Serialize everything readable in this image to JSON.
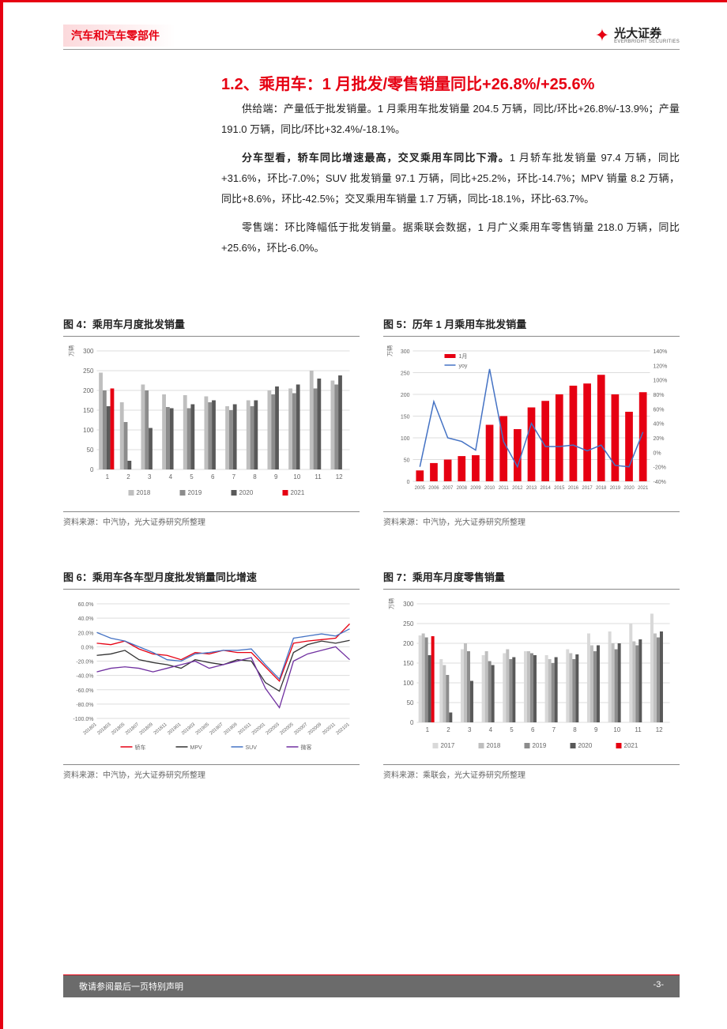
{
  "header": {
    "category": "汽车和汽车零部件",
    "logo_cn": "光大证券",
    "logo_en": "EVERBRIGHT SECURITIES"
  },
  "section": {
    "title": "1.2、乘用车：1 月批发/零售销量同比+26.8%/+25.6%",
    "p1": "供给端：产量低于批发销量。1 月乘用车批发销量 204.5 万辆，同比/环比+26.8%/-13.9%；产量 191.0 万辆，同比/环比+32.4%/-18.1%。",
    "p2_bold": "分车型看，轿车同比增速最高，交叉乘用车同比下滑。",
    "p2_rest": "1 月轿车批发销量 97.4 万辆，同比+31.6%，环比-7.0%；SUV 批发销量 97.1 万辆，同比+25.2%，环比-14.7%；MPV 销量 8.2 万辆，同比+8.6%，环比-42.5%；交叉乘用车销量 1.7 万辆，同比-18.1%，环比-63.7%。",
    "p3": "零售端：环比降幅低于批发销量。据乘联会数据，1 月广义乘用车零售销量 218.0 万辆，同比+25.6%，环比-6.0%。"
  },
  "fig4": {
    "title": "图 4：乘用车月度批发销量",
    "source": "资料来源：中汽协，光大证券研究所整理",
    "ylabel": "万辆",
    "ylim": [
      0,
      300
    ],
    "ytick_step": 50,
    "xlabels": [
      "1",
      "2",
      "3",
      "4",
      "5",
      "6",
      "7",
      "8",
      "9",
      "10",
      "11",
      "12"
    ],
    "legend": [
      "2018",
      "2019",
      "2020",
      "2021"
    ],
    "colors": [
      "#bfbfbf",
      "#8c8c8c",
      "#595959",
      "#e60012"
    ],
    "series": {
      "2018": [
        245,
        170,
        215,
        190,
        188,
        185,
        160,
        175,
        200,
        205,
        250,
        225
      ],
      "2019": [
        200,
        120,
        200,
        158,
        155,
        170,
        150,
        160,
        190,
        193,
        205,
        215
      ],
      "2020": [
        160,
        22,
        105,
        155,
        165,
        175,
        165,
        175,
        210,
        215,
        230,
        238
      ],
      "2021": [
        205,
        0,
        0,
        0,
        0,
        0,
        0,
        0,
        0,
        0,
        0,
        0
      ]
    },
    "grid_color": "#dddddd",
    "label_fontsize": 8
  },
  "fig5": {
    "title": "图 5：历年 1 月乘用车批发销量",
    "source": "资料来源：中汽协，光大证券研究所整理",
    "ylabel": "万辆",
    "ylim_left": [
      0,
      300
    ],
    "ytick_left": 50,
    "ylim_right": [
      -40,
      140
    ],
    "ytick_right": 20,
    "xlabels": [
      "2005",
      "2006",
      "2007",
      "2008",
      "2009",
      "2010",
      "2011",
      "2012",
      "2013",
      "2014",
      "2015",
      "2016",
      "2017",
      "2018",
      "2019",
      "2020",
      "2021"
    ],
    "legend": [
      "1月",
      "yoy"
    ],
    "bar_color": "#e60012",
    "line_color": "#4472c4",
    "bars": [
      25,
      42,
      50,
      58,
      60,
      130,
      150,
      120,
      170,
      185,
      200,
      220,
      225,
      245,
      200,
      160,
      205
    ],
    "line_pct": [
      -20,
      70,
      20,
      15,
      3,
      115,
      15,
      -20,
      40,
      8,
      8,
      10,
      2,
      10,
      -18,
      -20,
      28
    ],
    "grid_color": "#dddddd",
    "label_fontsize": 7
  },
  "fig6": {
    "title": "图 6：乘用车各车型月度批发销量同比增速",
    "source": "资料来源：中汽协，光大证券研究所整理",
    "ylim": [
      -100,
      60
    ],
    "ytick_step": 20,
    "xlabels": [
      "201801",
      "201803",
      "201805",
      "201807",
      "201809",
      "201811",
      "201901",
      "201903",
      "201905",
      "201907",
      "201909",
      "201911",
      "202001",
      "202003",
      "202005",
      "202007",
      "202009",
      "202011",
      "202101"
    ],
    "legend": [
      "轿车",
      "MPV",
      "SUV",
      "微客"
    ],
    "colors": [
      "#e60012",
      "#333333",
      "#4472c4",
      "#7030a0"
    ],
    "series": {
      "轿车": [
        5,
        3,
        8,
        -3,
        -10,
        -12,
        -18,
        -8,
        -10,
        -5,
        -8,
        -8,
        -28,
        -48,
        5,
        8,
        10,
        12,
        32
      ],
      "MPV": [
        -12,
        -10,
        -5,
        -18,
        -22,
        -25,
        -30,
        -18,
        -22,
        -25,
        -18,
        -20,
        -50,
        -62,
        -8,
        3,
        8,
        5,
        9
      ],
      "SUV": [
        20,
        12,
        8,
        0,
        -8,
        -18,
        -20,
        -10,
        -8,
        -5,
        -5,
        -3,
        -25,
        -45,
        12,
        15,
        18,
        15,
        25
      ],
      "微客": [
        -35,
        -30,
        -28,
        -30,
        -35,
        -30,
        -25,
        -20,
        -30,
        -25,
        -20,
        -15,
        -58,
        -85,
        -20,
        -10,
        -5,
        0,
        -18
      ]
    },
    "grid_color": "#dddddd",
    "label_fontsize": 7
  },
  "fig7": {
    "title": "图 7：乘用车月度零售销量",
    "source": "资料来源：乘联会，光大证券研究所整理",
    "ylabel": "万辆",
    "ylim": [
      0,
      300
    ],
    "ytick_step": 50,
    "xlabels": [
      "1",
      "2",
      "3",
      "4",
      "5",
      "6",
      "7",
      "8",
      "9",
      "10",
      "11",
      "12"
    ],
    "legend": [
      "2017",
      "2018",
      "2019",
      "2020",
      "2021"
    ],
    "colors": [
      "#d9d9d9",
      "#bfbfbf",
      "#8c8c8c",
      "#595959",
      "#e60012"
    ],
    "series": {
      "2017": [
        220,
        160,
        185,
        170,
        175,
        180,
        170,
        185,
        225,
        230,
        250,
        275
      ],
      "2018": [
        225,
        145,
        200,
        180,
        185,
        180,
        160,
        175,
        195,
        200,
        205,
        225
      ],
      "2019": [
        215,
        120,
        180,
        155,
        160,
        175,
        150,
        160,
        180,
        185,
        195,
        215
      ],
      "2020": [
        170,
        25,
        105,
        145,
        165,
        170,
        165,
        172,
        195,
        200,
        210,
        230
      ],
      "2021": [
        218,
        0,
        0,
        0,
        0,
        0,
        0,
        0,
        0,
        0,
        0,
        0
      ]
    },
    "grid_color": "#dddddd",
    "label_fontsize": 8
  },
  "footer": {
    "note": "敬请参阅最后一页特别声明",
    "page": "-3-"
  }
}
